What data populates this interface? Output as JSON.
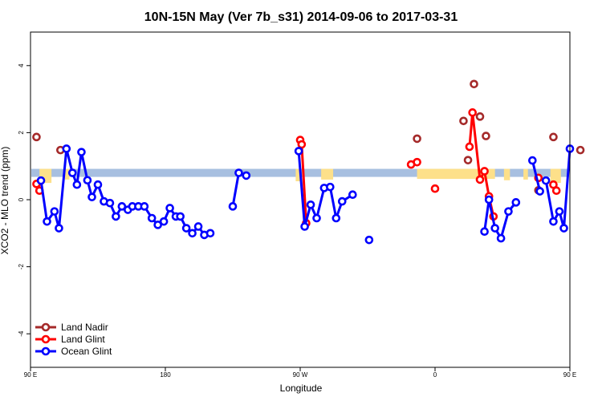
{
  "chart_data": {
    "type": "line",
    "title": "10N-15N May (Ver 7b_s31)   2014-09-06 to 2017-03-31",
    "xlabel": "Longitude",
    "ylabel": "XCO2 - MLO trend (ppm)",
    "xlim": [
      90,
      450
    ],
    "ylim": [
      -5,
      5
    ],
    "x_ticks": [
      {
        "value": 90,
        "label": "90 E"
      },
      {
        "value": 180,
        "label": "180"
      },
      {
        "value": 270,
        "label": "90 W"
      },
      {
        "value": 360,
        "label": "0"
      },
      {
        "value": 450,
        "label": "90 E"
      },
      {
        "value": 540,
        "label": "180"
      }
    ],
    "y_ticks": [
      {
        "value": -4,
        "label": "-4"
      },
      {
        "value": -2,
        "label": "-2"
      },
      {
        "value": 0,
        "label": "0"
      },
      {
        "value": 2,
        "label": "2"
      },
      {
        "value": 4,
        "label": "4"
      }
    ],
    "grid": false,
    "legend_position": "bottom-left",
    "band": {
      "y_min": 0.68,
      "y_max": 0.92,
      "color": "#a7bfe0"
    },
    "land_bars": {
      "color": "#fde08a",
      "spans": [
        [
          96,
          104,
          0.5
        ],
        [
          113,
          116,
          0.6
        ],
        [
          267,
          270,
          0.55
        ],
        [
          284,
          292,
          0.6
        ],
        [
          348,
          400,
          0.62
        ],
        [
          406,
          410,
          0.58
        ],
        [
          419,
          422,
          0.6
        ],
        [
          437,
          444,
          0.5
        ]
      ]
    },
    "series": [
      {
        "name": "Land Nadir",
        "color": "#a52a2a",
        "show_line": false,
        "segments": [
          [
            [
              94,
              1.87
            ]
          ],
          [
            [
              110,
              1.48
            ]
          ],
          [
            [
              348,
              1.82
            ]
          ],
          [
            [
              379,
              2.35
            ]
          ],
          [
            [
              382,
              1.18
            ]
          ],
          [
            [
              386,
              3.45
            ],
            [
              390,
              2.48
            ],
            [
              394,
              1.9
            ]
          ],
          [
            [
              429,
              0.28
            ]
          ],
          [
            [
              439,
              1.87
            ]
          ],
          [
            [
              457,
              1.48
            ]
          ]
        ]
      },
      {
        "name": "Land Glint",
        "color": "#ff0000",
        "show_line": true,
        "segments": [
          [
            [
              94,
              0.47
            ],
            [
              96,
              0.27
            ]
          ],
          [
            [
              270,
              1.78
            ],
            [
              271,
              1.65
            ],
            [
              274,
              -0.7
            ]
          ],
          [
            [
              344,
              1.05
            ],
            [
              348,
              1.12
            ]
          ],
          [
            [
              360,
              0.33
            ]
          ],
          [
            [
              383,
              1.58
            ],
            [
              385,
              2.6
            ],
            [
              390,
              0.6
            ],
            [
              393,
              0.85
            ],
            [
              396,
              0.1
            ],
            [
              399,
              -0.5
            ]
          ],
          [
            [
              429,
              0.65
            ]
          ],
          [
            [
              439,
              0.45
            ],
            [
              441,
              0.27
            ]
          ]
        ]
      },
      {
        "name": "Ocean Glint",
        "color": "#0000ff",
        "show_line": true,
        "segments": [
          [
            [
              97,
              0.57
            ],
            [
              101,
              -0.65
            ],
            [
              106,
              -0.35
            ],
            [
              109,
              -0.85
            ],
            [
              114,
              1.52
            ],
            [
              118,
              0.8
            ],
            [
              121,
              0.45
            ],
            [
              124,
              1.42
            ],
            [
              128,
              0.58
            ],
            [
              131,
              0.08
            ],
            [
              135,
              0.45
            ],
            [
              139,
              -0.05
            ],
            [
              143,
              -0.1
            ],
            [
              147,
              -0.5
            ],
            [
              151,
              -0.2
            ],
            [
              155,
              -0.3
            ],
            [
              158,
              -0.2
            ],
            [
              162,
              -0.2
            ],
            [
              166,
              -0.2
            ],
            [
              171,
              -0.55
            ],
            [
              175,
              -0.75
            ],
            [
              179,
              -0.65
            ],
            [
              183,
              -0.25
            ],
            [
              187,
              -0.5
            ],
            [
              190,
              -0.5
            ],
            [
              194,
              -0.85
            ],
            [
              198,
              -1.0
            ],
            [
              202,
              -0.8
            ],
            [
              206,
              -1.05
            ],
            [
              210,
              -1.0
            ]
          ],
          [
            [
              225,
              -0.2
            ],
            [
              229,
              0.8
            ],
            [
              234,
              0.72
            ]
          ],
          [
            [
              269,
              1.45
            ],
            [
              273,
              -0.8
            ],
            [
              277,
              -0.15
            ],
            [
              281,
              -0.55
            ],
            [
              286,
              0.35
            ],
            [
              290,
              0.38
            ],
            [
              294,
              -0.55
            ],
            [
              298,
              -0.05
            ],
            [
              305,
              0.15
            ]
          ],
          [
            [
              316,
              -1.2
            ]
          ],
          [
            [
              393,
              -0.95
            ],
            [
              396,
              0.0
            ],
            [
              400,
              -0.85
            ],
            [
              404,
              -1.15
            ],
            [
              409,
              -0.35
            ],
            [
              414,
              -0.08
            ]
          ],
          [
            [
              425,
              1.17
            ],
            [
              430,
              0.25
            ]
          ],
          [
            [
              434,
              0.57
            ],
            [
              439,
              -0.65
            ],
            [
              443,
              -0.35
            ],
            [
              446,
              -0.85
            ],
            [
              450,
              1.52
            ]
          ]
        ]
      }
    ]
  }
}
